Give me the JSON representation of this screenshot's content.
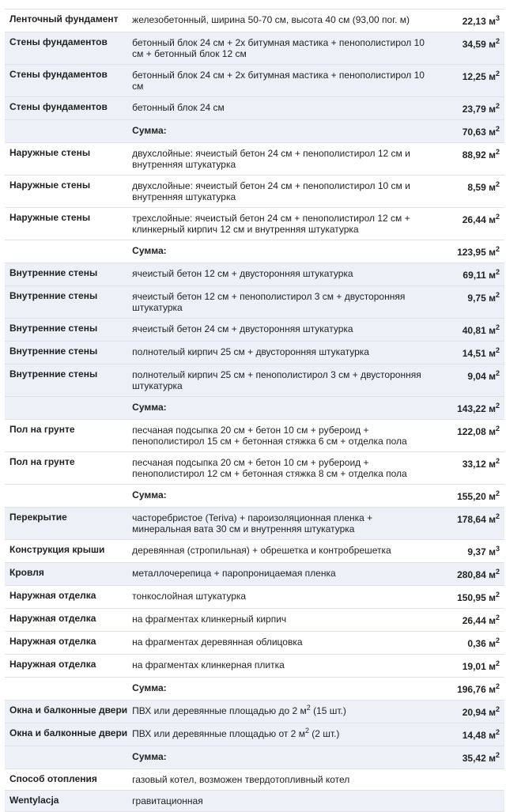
{
  "rows": [
    {
      "label": "Ленточный фундамент",
      "desc": "железобетонный, ширина 50-70 см, высота 40 см (93,00 пог. м)",
      "value": "22,13 м",
      "exp": "3",
      "shade": "white"
    },
    {
      "label": "Стены фундаментов",
      "desc": "бетонный блок 24 см + 2х битумная мастика + пенополистирол 10 см + бетонный блок 12 см",
      "value": "34,59 м",
      "exp": "2",
      "shade": "blue"
    },
    {
      "label": "Стены фундаментов",
      "desc": "бетонный блок 24 см + 2х битумная мастика + пенополистирол 10 см",
      "value": "12,25 м",
      "exp": "2",
      "shade": "blue"
    },
    {
      "label": "Стены фундаментов",
      "desc": "бетонный блок 24 см",
      "value": "23,79 м",
      "exp": "2",
      "shade": "blue"
    },
    {
      "label": "",
      "desc": "Сумма:",
      "value": "70,63 м",
      "exp": "2",
      "shade": "blue",
      "sum": true
    },
    {
      "label": "Наружные стены",
      "desc": "двухслойные: ячеистый бетон 24 см + пенополистирол 12 см и внутренняя штукатурка",
      "value": "88,92 м",
      "exp": "2",
      "shade": "white"
    },
    {
      "label": "Наружные стены",
      "desc": "двухслойные: ячеистый бетон 24 см + пенополистирол 10 см и внутренняя штукатурка",
      "value": "8,59 м",
      "exp": "2",
      "shade": "white"
    },
    {
      "label": "Наружные стены",
      "desc": "трехслойные: ячеистый бетон 24 см + пенополистирол 12 см + клинкерный кирпич 12 см и внутренняя штукатурка",
      "value": "26,44 м",
      "exp": "2",
      "shade": "white"
    },
    {
      "label": "",
      "desc": "Сумма:",
      "value": "123,95 м",
      "exp": "2",
      "shade": "white",
      "sum": true
    },
    {
      "label": "Внутренние стены",
      "desc": "ячеистый бетон 12 см + двусторонняя штукатурка",
      "value": "69,11 м",
      "exp": "2",
      "shade": "blue"
    },
    {
      "label": "Внутренние стены",
      "desc": "ячеистый бетон 12 см + пенополистирол 3 см + двусторонняя штукатурка",
      "value": "9,75 м",
      "exp": "2",
      "shade": "blue"
    },
    {
      "label": "Внутренние стены",
      "desc": "ячеистый бетон 24 см + двусторонняя штукатурка",
      "value": "40,81 м",
      "exp": "2",
      "shade": "blue"
    },
    {
      "label": "Внутренние стены",
      "desc": "полнотелый кирпич 25 см + двусторонняя штукатурка",
      "value": "14,51 м",
      "exp": "2",
      "shade": "blue"
    },
    {
      "label": "Внутренние стены",
      "desc": "полнотелый кирпич 25 см + пенополистирол 3 см + двусторонняя штукатурка",
      "value": "9,04 м",
      "exp": "2",
      "shade": "blue"
    },
    {
      "label": "",
      "desc": "Сумма:",
      "value": "143,22 м",
      "exp": "2",
      "shade": "blue",
      "sum": true
    },
    {
      "label": "Пол на грунте",
      "desc": "песчаная подсыпка 20 см + бетон 10 см + рубероид + пенополистирол 15 см + бетонная стяжка 6 см + отделка пола",
      "value": "122,08 м",
      "exp": "2",
      "shade": "white"
    },
    {
      "label": "Пол на грунте",
      "desc": "песчаная подсыпка 20 см + бетон 10 см + рубероид + пенополистирол 12 см + бетонная стяжка 8 см + отделка пола",
      "value": "33,12 м",
      "exp": "2",
      "shade": "white"
    },
    {
      "label": "",
      "desc": "Сумма:",
      "value": "155,20 м",
      "exp": "2",
      "shade": "white",
      "sum": true
    },
    {
      "label": "Перекрытие",
      "desc": "часторебристое (Teriva) + пароизоляционная пленка + минеральная вата 30 см и внутренняя штукатурка",
      "value": "178,64 м",
      "exp": "2",
      "shade": "blue"
    },
    {
      "label": "Конструкция крыши",
      "desc": "деревянная (стропильная) + обрешетка и контробрешетка",
      "value": "9,37 м",
      "exp": "3",
      "shade": "white"
    },
    {
      "label": "Кровля",
      "desc": "металлочерепица + паропроницаемая пленка",
      "value": "280,84 м",
      "exp": "2",
      "shade": "blue"
    },
    {
      "label": "Наружная отделка",
      "desc": "тонкослойная штукатурка",
      "value": "150,95 м",
      "exp": "2",
      "shade": "white"
    },
    {
      "label": "Наружная отделка",
      "desc": "на фрагментах клинкерный кирпич",
      "value": "26,44 м",
      "exp": "2",
      "shade": "white"
    },
    {
      "label": "Наружная отделка",
      "desc": "на фрагментах деревянная облицовка",
      "value": "0,36 м",
      "exp": "2",
      "shade": "white"
    },
    {
      "label": "Наружная отделка",
      "desc": "на фрагментах клинкерная плитка",
      "value": "19,01 м",
      "exp": "2",
      "shade": "white"
    },
    {
      "label": "",
      "desc": "Сумма:",
      "value": "196,76 м",
      "exp": "2",
      "shade": "white",
      "sum": true
    },
    {
      "label": "Окна и балконные двери",
      "desc": "ПВХ или деревянные площадью до 2 м",
      "desc_sup": "2",
      "desc_after": " (15 шт.)",
      "value": "20,94 м",
      "exp": "2",
      "shade": "blue"
    },
    {
      "label": "Окна и балконные двери",
      "desc": "ПВХ или деревянные площадью от 2 м",
      "desc_sup": "2",
      "desc_after": " (2 шт.)",
      "value": "14,48 м",
      "exp": "2",
      "shade": "blue"
    },
    {
      "label": "",
      "desc": "Сумма:",
      "value": "35,42 м",
      "exp": "2",
      "shade": "blue",
      "sum": true
    },
    {
      "label": "Способ отопления",
      "desc": "газовый котел, возможен твердотопливный котел",
      "value": "",
      "exp": "",
      "shade": "white"
    },
    {
      "label": "Wentylacja",
      "desc": "гравитационная",
      "value": "",
      "exp": "",
      "shade": "blue"
    }
  ]
}
